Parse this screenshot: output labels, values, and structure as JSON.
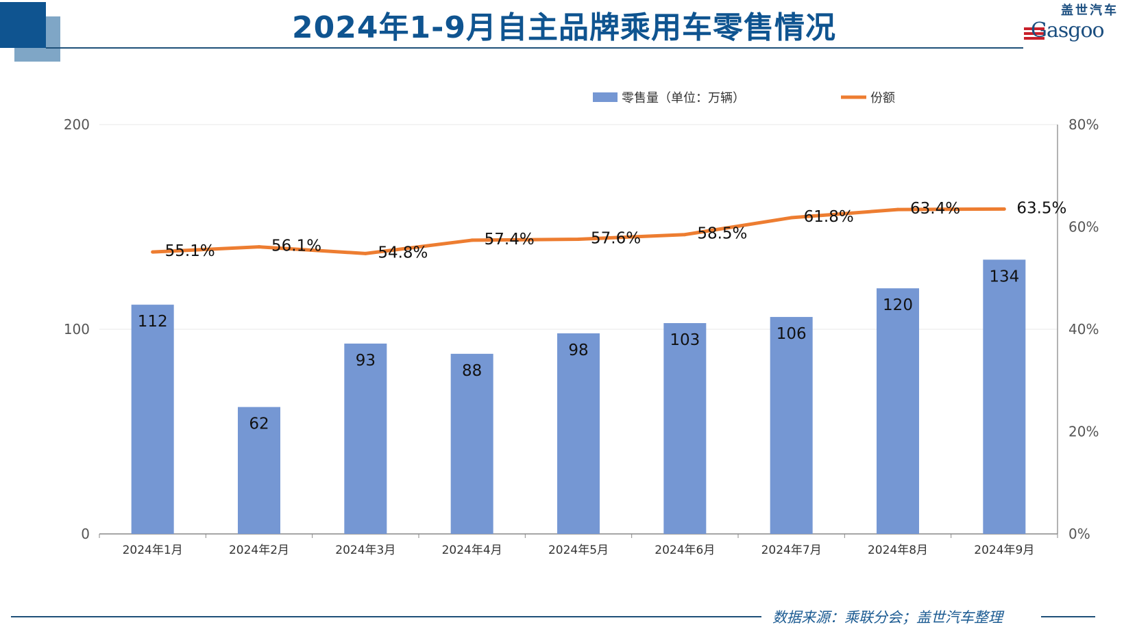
{
  "header": {
    "title": "2024年1-9月自主品牌乘用车零售情况"
  },
  "logo": {
    "cn": "盖世汽车",
    "en": "Gasgoo"
  },
  "footer": {
    "source": "数据来源：乘联分会；盖世汽车整理"
  },
  "colors": {
    "bar": "#7597d3",
    "line": "#ed7d31",
    "brand": "#0f5490"
  },
  "chart_data": {
    "type": "bar+line",
    "title": "2024年1-9月自主品牌乘用车零售情况",
    "categories": [
      "2024年1月",
      "2024年2月",
      "2024年3月",
      "2024年4月",
      "2024年5月",
      "2024年6月",
      "2024年7月",
      "2024年8月",
      "2024年9月"
    ],
    "series": [
      {
        "name": "零售量（单位：万辆）",
        "type": "bar",
        "axis": "left",
        "values": [
          112,
          62,
          93,
          88,
          98,
          103,
          106,
          120,
          134
        ],
        "labels": [
          "112",
          "62",
          "93",
          "88",
          "98",
          "103",
          "106",
          "120",
          "134"
        ]
      },
      {
        "name": "份额",
        "type": "line",
        "axis": "right",
        "values": [
          55.1,
          56.1,
          54.8,
          57.4,
          57.6,
          58.5,
          61.8,
          63.4,
          63.5
        ],
        "labels": [
          "55.1%",
          "56.1%",
          "54.8%",
          "57.4%",
          "57.6%",
          "58.5%",
          "61.8%",
          "63.4%",
          "63.5%"
        ]
      }
    ],
    "y_left": {
      "ylim": [
        0,
        200
      ],
      "ticks": [
        "0",
        "100",
        "200"
      ]
    },
    "y_right": {
      "ylim": [
        0,
        80
      ],
      "ticks": [
        "0%",
        "20%",
        "40%",
        "60%",
        "80%"
      ]
    },
    "legend": "top-right",
    "grid": true
  }
}
